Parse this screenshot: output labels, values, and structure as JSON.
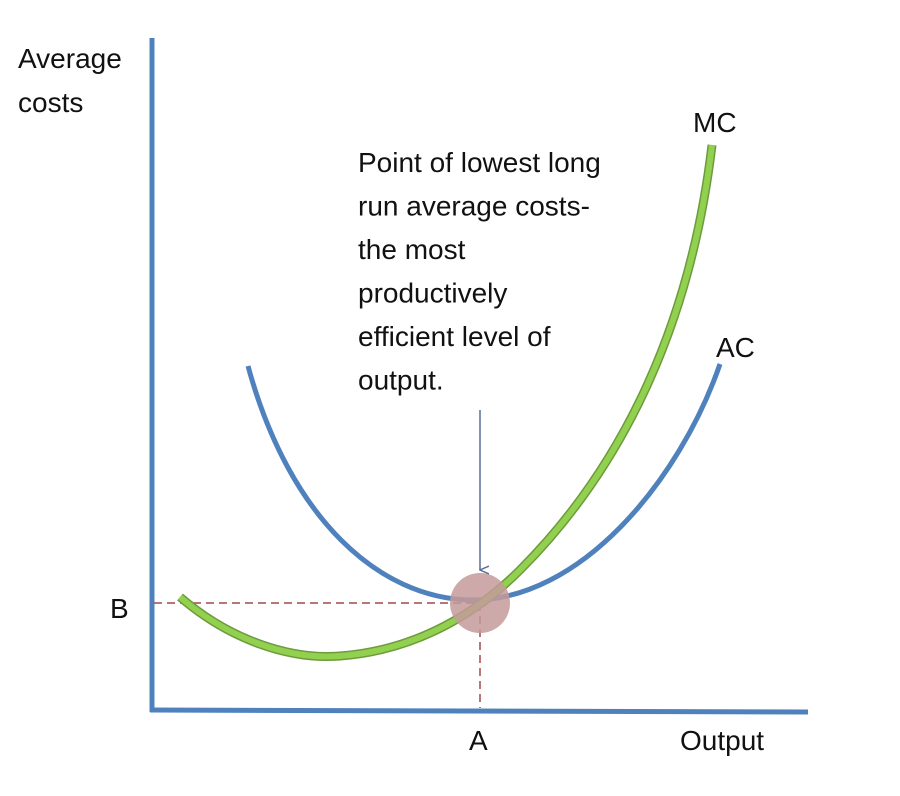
{
  "y_axis_label": [
    "Average",
    "costs"
  ],
  "x_axis_label": "Output",
  "curves": {
    "mc": "MC",
    "ac": "AC"
  },
  "annotation": [
    "Point of lowest long",
    "run average costs-",
    "the most",
    "productively",
    "efficient level of",
    "output."
  ],
  "point_labels": {
    "y": "B",
    "x": "A"
  }
}
